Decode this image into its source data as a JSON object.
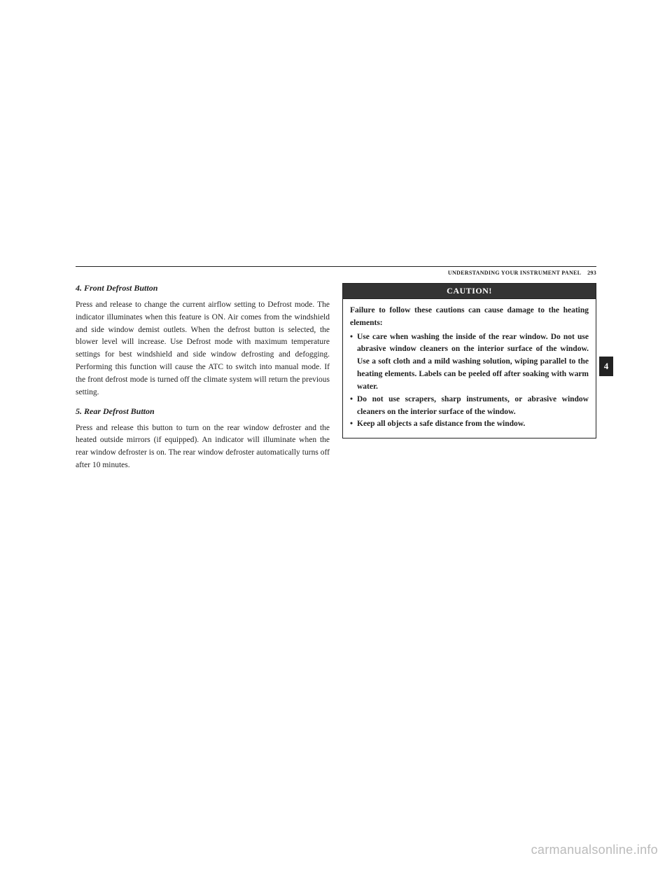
{
  "header": {
    "section_title": "UNDERSTANDING YOUR INSTRUMENT PANEL",
    "page_number": "293"
  },
  "left_column": {
    "heading1": "4. Front Defrost Button",
    "para1": "Press and release to change the current airflow setting to Defrost mode. The indicator illuminates when this feature is ON. Air comes from the windshield and side window demist outlets. When the defrost button is selected, the blower level will increase. Use Defrost mode with maximum temperature settings for best windshield and side window defrosting and defogging. Performing this function will cause the ATC to switch into manual mode. If the front defrost mode is turned off the climate system will return the previous setting.",
    "heading2": "5. Rear Defrost Button",
    "para2": "Press and release this button to turn on the rear window defroster and the heated outside mirrors (if equipped). An indicator will illuminate when the rear window defroster is on. The rear window defroster automatically turns off after 10 minutes."
  },
  "caution": {
    "title": "CAUTION!",
    "intro": "Failure to follow these cautions can cause damage to the heating elements:",
    "items": [
      "Use care when washing the inside of the rear window. Do not use abrasive window cleaners on the interior surface of the window. Use a soft cloth and a mild washing solution, wiping parallel to the heating elements. Labels can be peeled off after soaking with warm water.",
      "Do not use scrapers, sharp instruments, or abrasive window cleaners on the interior surface of the window.",
      "Keep all objects a safe distance from the window."
    ]
  },
  "tab": {
    "number": "4"
  },
  "watermark": "carmanualsonline.info"
}
